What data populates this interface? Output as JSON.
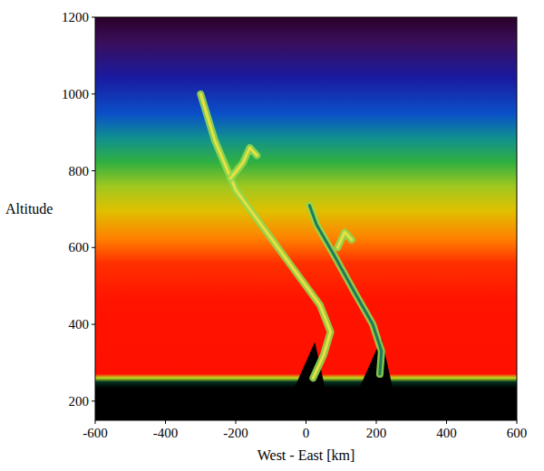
{
  "chart_data": {
    "type": "heatmap",
    "x_label": "West - East [km]",
    "y_label": "Altitude",
    "xlim": [
      -600,
      600
    ],
    "ylim": [
      150,
      1200
    ],
    "xticks": [
      -600,
      -400,
      -200,
      0,
      200,
      400,
      600
    ],
    "yticks": [
      200,
      400,
      600,
      800,
      1000,
      1200
    ],
    "plumes": [
      {
        "x": [
          20,
          50,
          70,
          40,
          -40,
          -120,
          -200,
          -260,
          -300
        ],
        "y": [
          260,
          320,
          380,
          450,
          550,
          650,
          750,
          880,
          1000
        ]
      },
      {
        "x": [
          210,
          215,
          190,
          140,
          80,
          30,
          10
        ],
        "y": [
          270,
          330,
          400,
          480,
          580,
          660,
          710
        ]
      },
      {
        "x": [
          -215,
          -180,
          -160,
          -140
        ],
        "y": [
          780,
          820,
          860,
          840
        ]
      },
      {
        "x": [
          90,
          110,
          130
        ],
        "y": [
          600,
          640,
          620
        ]
      }
    ]
  }
}
